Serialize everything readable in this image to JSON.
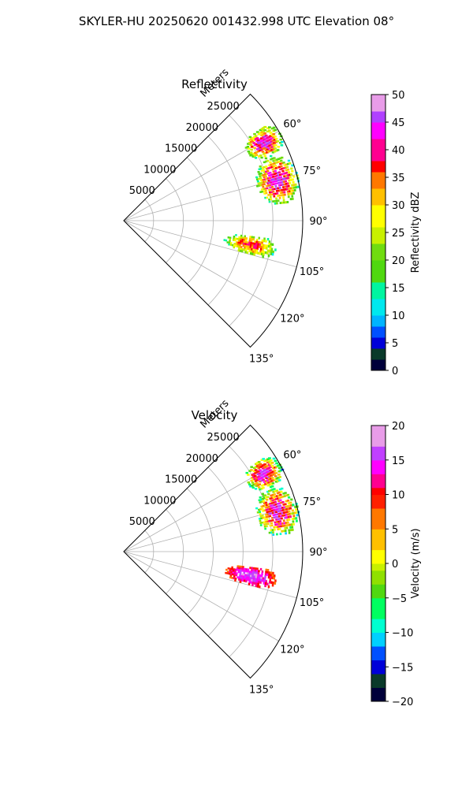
{
  "figure": {
    "suptitle": "SKYLER-HU  20250620  001432.998 UTC Elevation 08°"
  },
  "chart_data": [
    {
      "type": "heatmap",
      "title": "Reflectivity",
      "radial_label": "Meters",
      "r_ticks": [
        5000,
        10000,
        15000,
        20000,
        25000
      ],
      "r_tick_labels": [
        "5000",
        "10000",
        "15000",
        "20000",
        "25000"
      ],
      "r_max": 30000,
      "theta_range_deg": [
        45,
        135
      ],
      "theta_ticks": [
        60,
        75,
        90,
        105,
        120,
        135
      ],
      "theta_tick_labels": [
        "60°",
        "75°",
        "90°",
        "105°",
        "120°",
        "135°"
      ],
      "colorbar": {
        "label": "Reflectivity dBZ",
        "range": [
          0,
          50
        ],
        "ticks": [
          0,
          5,
          10,
          15,
          20,
          25,
          30,
          35,
          40,
          45,
          50
        ],
        "tick_labels": [
          "0",
          "5",
          "10",
          "15",
          "20",
          "25",
          "30",
          "35",
          "40",
          "45",
          "50"
        ]
      },
      "echo_regions": [
        {
          "name": "north echo",
          "theta_deg": [
            55,
            66
          ],
          "r_m": [
            23500,
            30000
          ],
          "value_min": 10,
          "value_max": 45
        },
        {
          "name": "northeast echo",
          "theta_deg": [
            66,
            84
          ],
          "r_m": [
            23000,
            30000
          ],
          "value_min": 10,
          "value_max": 45
        },
        {
          "name": "southeast echo",
          "theta_deg": [
            96,
            105
          ],
          "r_m": [
            17000,
            26000
          ],
          "value_min": 10,
          "value_max": 38
        }
      ]
    },
    {
      "type": "heatmap",
      "title": "Velocity",
      "radial_label": "Meters",
      "r_ticks": [
        5000,
        10000,
        15000,
        20000,
        25000
      ],
      "r_tick_labels": [
        "5000",
        "10000",
        "15000",
        "20000",
        "25000"
      ],
      "r_max": 30000,
      "theta_range_deg": [
        45,
        135
      ],
      "theta_ticks": [
        60,
        75,
        90,
        105,
        120,
        135
      ],
      "theta_tick_labels": [
        "60°",
        "75°",
        "90°",
        "105°",
        "120°",
        "135°"
      ],
      "colorbar": {
        "label": "Velocity (m/s)",
        "range": [
          -20,
          20
        ],
        "ticks": [
          -20,
          -15,
          -10,
          -5,
          0,
          5,
          10,
          15,
          20
        ],
        "tick_labels": [
          "−20",
          "−15",
          "−10",
          "−5",
          "0",
          "5",
          "10",
          "15",
          "20"
        ]
      },
      "echo_regions": [
        {
          "name": "north echo",
          "theta_deg": [
            55,
            66
          ],
          "r_m": [
            23500,
            30000
          ],
          "value_min": -14,
          "value_max": 16
        },
        {
          "name": "northeast echo",
          "theta_deg": [
            66,
            84
          ],
          "r_m": [
            23000,
            30000
          ],
          "value_min": -14,
          "value_max": 16
        },
        {
          "name": "southeast echo",
          "theta_deg": [
            96,
            105
          ],
          "r_m": [
            17000,
            26000
          ],
          "value_min": 5,
          "value_max": 17
        }
      ]
    }
  ]
}
